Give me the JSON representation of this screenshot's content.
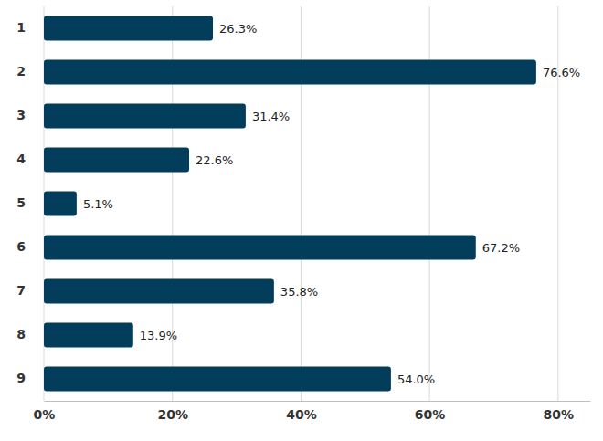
{
  "chart_data": {
    "type": "bar",
    "orientation": "horizontal",
    "categories": [
      "1",
      "2",
      "3",
      "4",
      "5",
      "6",
      "7",
      "8",
      "9"
    ],
    "values": [
      26.3,
      76.6,
      31.4,
      22.6,
      5.1,
      67.2,
      35.8,
      13.9,
      54.0
    ],
    "value_labels": [
      "26.3%",
      "76.6%",
      "31.4%",
      "22.6%",
      "5.1%",
      "67.2%",
      "35.8%",
      "13.9%",
      "54.0%"
    ],
    "color": "#023d5c",
    "xlim": [
      0,
      85
    ],
    "xticks": [
      {
        "value": 0,
        "label": "0%"
      },
      {
        "value": 20,
        "label": "20%"
      },
      {
        "value": 40,
        "label": "40%"
      },
      {
        "value": 60,
        "label": "60%"
      },
      {
        "value": 80,
        "label": "80%"
      }
    ],
    "grid": true,
    "data_labels": true
  }
}
